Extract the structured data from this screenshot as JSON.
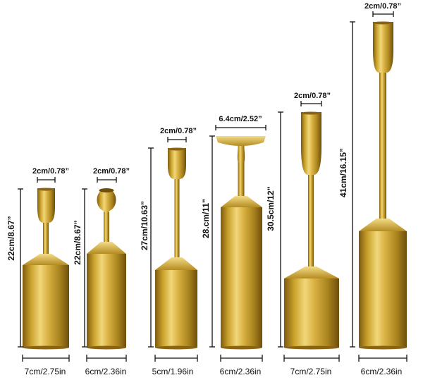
{
  "product": "gold metal candlestick holders",
  "colors": {
    "gold": "#c9a12b",
    "gold_light": "#f1d77a",
    "gold_dark": "#7d5a10",
    "ink": "#111111"
  },
  "holders": [
    {
      "top": "2cm/0.78”",
      "height": "22cm/8.67”",
      "base": "7cm/2.75in",
      "cup": "tulip"
    },
    {
      "top": "2cm/0.78”",
      "height": "22cm/8.67”",
      "base": "6cm/2.36in",
      "cup": "round"
    },
    {
      "top": "2cm/0.78”",
      "height": "27cm/10.63”",
      "base": "5cm/1.96in",
      "cup": "tulip"
    },
    {
      "top": "6.4cm/2.52”",
      "height": "28.cm/11”",
      "base": "6cm/2.36in",
      "cup": "plate"
    },
    {
      "top": "2cm/0.78”",
      "height": "30.5cm/12”",
      "base": "7cm/2.75in",
      "cup": "tulip"
    },
    {
      "top": "2cm/0.78”",
      "height": "41cm/16.15”",
      "base": "6cm/2.36in",
      "cup": "tulip"
    }
  ]
}
